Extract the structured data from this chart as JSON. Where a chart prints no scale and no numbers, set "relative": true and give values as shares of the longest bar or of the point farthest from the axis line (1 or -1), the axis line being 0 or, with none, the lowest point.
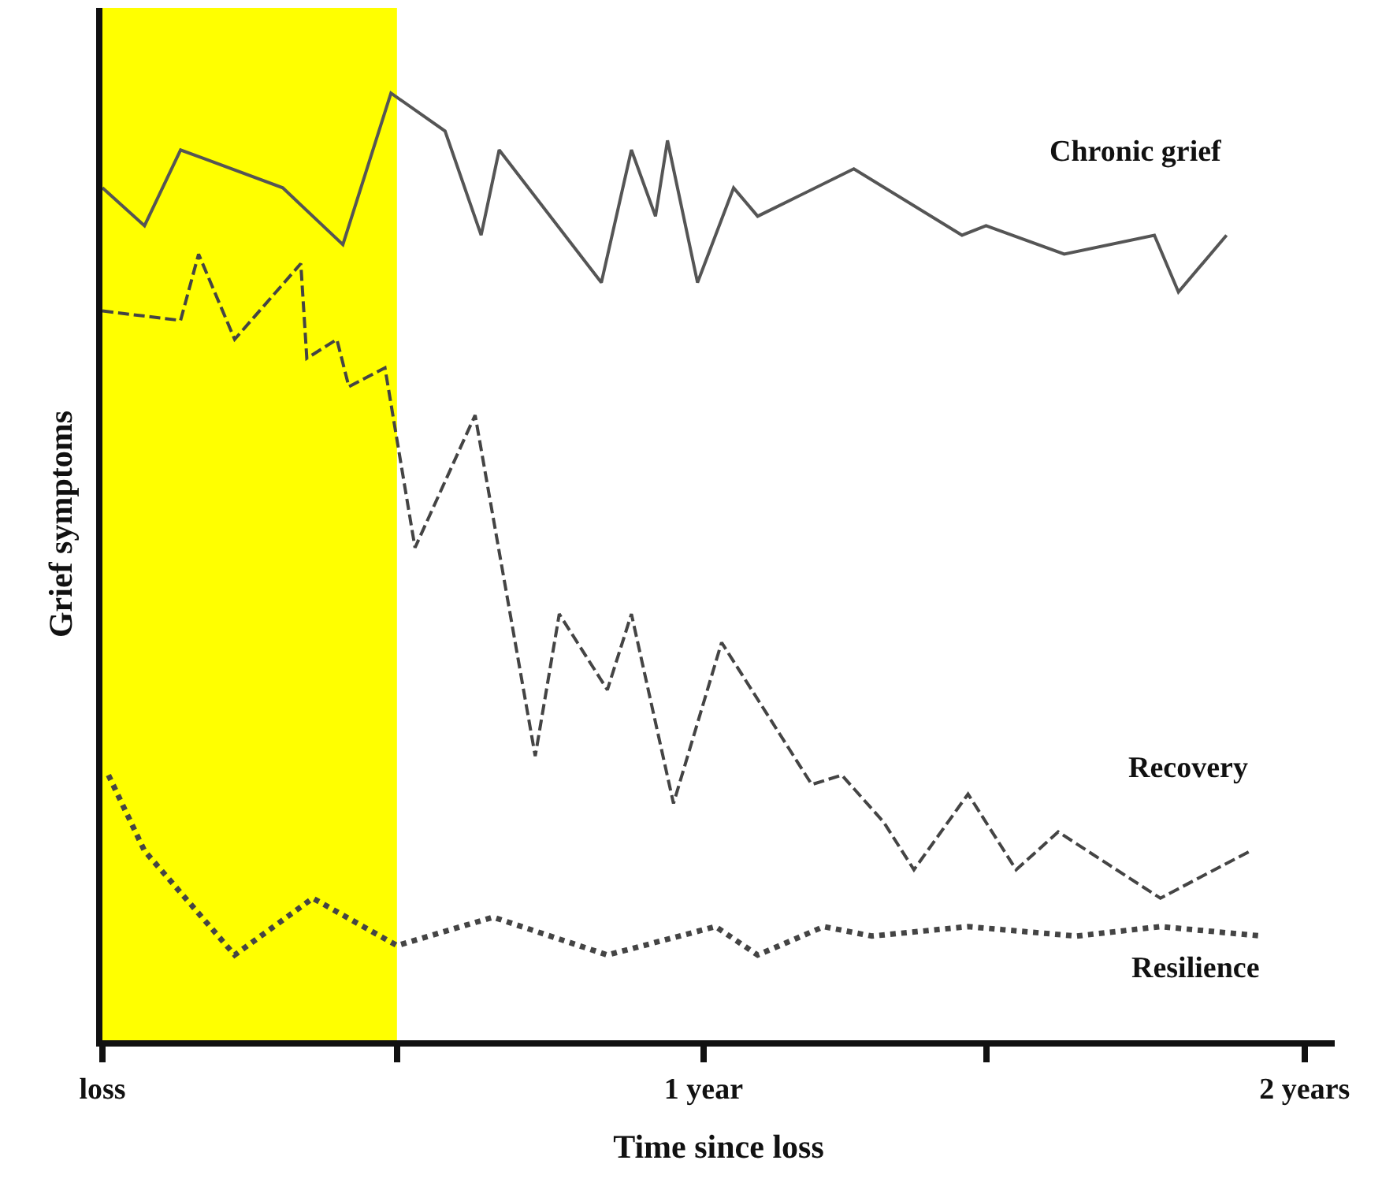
{
  "chart_data": {
    "type": "line",
    "relative": true,
    "xlabel": "Time since loss",
    "ylabel": "Grief symptoms",
    "xlim": [
      0,
      2.05
    ],
    "xticks": [
      {
        "value": 0,
        "label": "loss"
      },
      {
        "value": 0.49,
        "label": null
      },
      {
        "value": 1,
        "label": "1 year"
      },
      {
        "value": 1.47,
        "label": null
      },
      {
        "value": 2,
        "label": "2 years"
      }
    ],
    "legend": false,
    "grid": false,
    "bands": [
      {
        "axis": "x",
        "from": 0,
        "to": 0.49,
        "color": "#ffff00"
      }
    ],
    "series": [
      {
        "name": "Chronic grief",
        "color": "#555555",
        "line_style": "solid",
        "x": [
          0,
          0.07,
          0.13,
          0.3,
          0.4,
          0.48,
          0.57,
          0.63,
          0.66,
          0.83,
          0.88,
          0.92,
          0.94,
          0.99,
          1.05,
          1.09,
          1.25,
          1.43,
          1.47,
          1.6,
          1.75,
          1.79,
          1.87
        ],
        "values": [
          0.9,
          0.86,
          0.94,
          0.9,
          0.84,
          1,
          0.96,
          0.85,
          0.94,
          0.8,
          0.94,
          0.87,
          0.95,
          0.8,
          0.9,
          0.87,
          0.92,
          0.85,
          0.86,
          0.83,
          0.85,
          0.79,
          0.85
        ]
      },
      {
        "name": "Recovery",
        "color": "#444444",
        "line_style": "dashed",
        "x": [
          0,
          0.13,
          0.16,
          0.22,
          0.33,
          0.34,
          0.39,
          0.41,
          0.47,
          0.52,
          0.62,
          0.72,
          0.76,
          0.84,
          0.88,
          0.95,
          1.03,
          1.18,
          1.23,
          1.3,
          1.35,
          1.44,
          1.52,
          1.59,
          1.76,
          1.91
        ],
        "values": [
          0.77,
          0.76,
          0.83,
          0.74,
          0.82,
          0.72,
          0.74,
          0.69,
          0.71,
          0.52,
          0.66,
          0.3,
          0.45,
          0.37,
          0.45,
          0.25,
          0.42,
          0.27,
          0.28,
          0.23,
          0.18,
          0.26,
          0.18,
          0.22,
          0.15,
          0.2
        ]
      },
      {
        "name": "Resilience",
        "color": "#444444",
        "line_style": "dotted",
        "x": [
          0.01,
          0.07,
          0.22,
          0.35,
          0.49,
          0.65,
          0.84,
          1.02,
          1.09,
          1.2,
          1.28,
          1.44,
          1.62,
          1.76,
          1.93
        ],
        "values": [
          0.28,
          0.2,
          0.09,
          0.15,
          0.1,
          0.13,
          0.09,
          0.12,
          0.09,
          0.12,
          0.11,
          0.12,
          0.11,
          0.12,
          0.11
        ]
      }
    ]
  }
}
